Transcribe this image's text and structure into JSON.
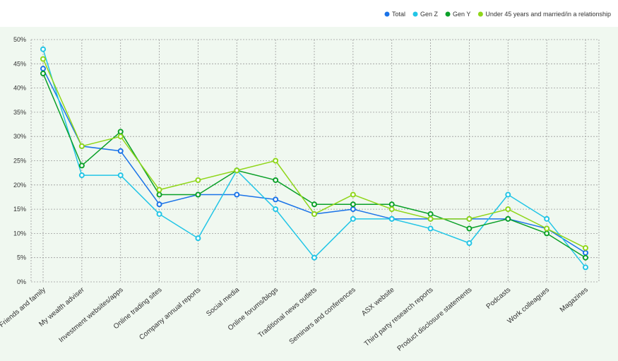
{
  "chart_data": {
    "type": "line",
    "categories": [
      "Friends and family",
      "My wealth adviser",
      "Investment websites/apps",
      "Online trading sites",
      "Company annual reports",
      "Social media",
      "Online forums/blogs",
      "Traditional news outlets",
      "Seminars and conferences",
      "ASX website",
      "Third party research reports",
      "Product disclosure statements",
      "Podcasts",
      "Work colleagues",
      "Magazines"
    ],
    "yticks": [
      "0%",
      "5%",
      "10%",
      "15%",
      "20%",
      "25%",
      "30%",
      "35%",
      "40%",
      "45%",
      "50%"
    ],
    "ylim": [
      0,
      50
    ],
    "grid": true,
    "legend_position": "top-right",
    "background_color": "#f0f8f0",
    "series": [
      {
        "name": "Total",
        "color": "#1a73e8",
        "values": [
          44,
          28,
          27,
          16,
          18,
          18,
          17,
          14,
          15,
          13,
          13,
          13,
          13,
          11,
          6
        ]
      },
      {
        "name": "Gen Z",
        "color": "#22c5e6",
        "values": [
          48,
          22,
          22,
          14,
          9,
          23,
          15,
          5,
          13,
          13,
          11,
          8,
          18,
          13,
          3
        ]
      },
      {
        "name": "Gen Y",
        "color": "#0aa028",
        "values": [
          43,
          24,
          31,
          18,
          18,
          23,
          21,
          16,
          16,
          16,
          14,
          11,
          13,
          10,
          5
        ]
      },
      {
        "name": "Under 45 years and married/in a relationship",
        "color": "#8fd619",
        "values": [
          46,
          28,
          30,
          19,
          21,
          23,
          25,
          14,
          18,
          15,
          13,
          13,
          15,
          11,
          7
        ]
      }
    ]
  }
}
